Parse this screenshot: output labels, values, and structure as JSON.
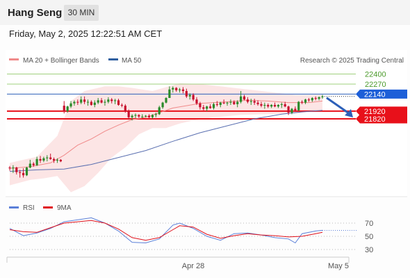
{
  "header": {
    "symbol": "Hang Seng",
    "timeframe": "30 MIN"
  },
  "datetime": "Friday, May 2, 2025 12:22:51 AM CET",
  "legend": [
    {
      "label": "MA 20 + Bollinger Bands",
      "color": "#f08a8a"
    },
    {
      "label": "MA 50",
      "color": "#2f5fa0"
    }
  ],
  "credit": "Research © 2025 Trading Central",
  "colors": {
    "up": "#2a8a2a",
    "down": "#c8102e",
    "ma50": "#5a6fb0",
    "ma20": "#f08a8a",
    "band": "#fbe0e0",
    "support": "#e8101a",
    "pivot": "#2d5fb8",
    "resistance": "#9fd07e",
    "rsi": "#5a7fd8",
    "rsi_ma": "#e0101a"
  },
  "chart_data": [
    {
      "type": "candlestick",
      "title": "Hang Seng 30 MIN",
      "x_labels": [
        "Apr 28",
        "May 5"
      ],
      "y_range": [
        21000,
        22450
      ],
      "candles": [
        [
          21190,
          21210,
          21150,
          21180
        ],
        [
          21180,
          21220,
          21120,
          21190
        ],
        [
          21190,
          21200,
          21100,
          21130
        ],
        [
          21130,
          21160,
          21060,
          21120
        ],
        [
          21120,
          21180,
          21060,
          21090
        ],
        [
          21090,
          21200,
          21080,
          21190
        ],
        [
          21190,
          21290,
          21180,
          21240
        ],
        [
          21240,
          21260,
          21200,
          21220
        ],
        [
          21220,
          21330,
          21210,
          21300
        ],
        [
          21300,
          21340,
          21250,
          21280
        ],
        [
          21280,
          21330,
          21260,
          21310
        ],
        [
          21310,
          21350,
          21270,
          21320
        ],
        [
          21320,
          21370,
          21290,
          21300
        ],
        [
          21300,
          21320,
          21250,
          21280
        ],
        [
          21280,
          21310,
          21250,
          21290
        ],
        [
          21290,
          21300,
          21260,
          21270
        ],
        [
          21990,
          22050,
          21890,
          21920
        ],
        [
          21920,
          21990,
          21900,
          21980
        ],
        [
          21980,
          22050,
          21960,
          22020
        ],
        [
          22020,
          22060,
          21990,
          22040
        ],
        [
          22040,
          22070,
          22000,
          22030
        ],
        [
          22030,
          22110,
          22010,
          22070
        ],
        [
          22070,
          22110,
          22010,
          22040
        ],
        [
          22040,
          22070,
          21990,
          22040
        ],
        [
          22040,
          22060,
          21990,
          22000
        ],
        [
          22000,
          22060,
          21970,
          22030
        ],
        [
          22030,
          22090,
          22010,
          22060
        ],
        [
          22060,
          22090,
          22020,
          22030
        ],
        [
          22030,
          22070,
          21990,
          22040
        ],
        [
          22040,
          22100,
          22020,
          22070
        ],
        [
          22070,
          22090,
          22020,
          22050
        ],
        [
          22050,
          22080,
          22010,
          22060
        ],
        [
          22060,
          22080,
          21990,
          22000
        ],
        [
          22000,
          22020,
          21970,
          21990
        ],
        [
          21990,
          22010,
          21900,
          21920
        ],
        [
          21920,
          21940,
          21810,
          21840
        ],
        [
          21840,
          21880,
          21800,
          21860
        ],
        [
          21860,
          21890,
          21830,
          21870
        ],
        [
          21870,
          21880,
          21830,
          21850
        ],
        [
          21850,
          21880,
          21830,
          21850
        ],
        [
          21850,
          21870,
          21840,
          21860
        ],
        [
          21860,
          21880,
          21830,
          21840
        ],
        [
          21840,
          21880,
          21820,
          21870
        ],
        [
          21870,
          21900,
          21840,
          21880
        ],
        [
          21880,
          21990,
          21870,
          21970
        ],
        [
          21970,
          22040,
          21950,
          22030
        ],
        [
          22030,
          22100,
          22020,
          22090
        ],
        [
          22090,
          22240,
          22090,
          22200
        ],
        [
          22200,
          22240,
          22160,
          22220
        ],
        [
          22220,
          22230,
          22170,
          22190
        ],
        [
          22190,
          22220,
          22160,
          22200
        ],
        [
          22200,
          22230,
          22150,
          22180
        ],
        [
          22180,
          22210,
          22090,
          22110
        ],
        [
          22110,
          22150,
          22070,
          22130
        ],
        [
          22130,
          22150,
          22050,
          22070
        ],
        [
          22070,
          22100,
          22000,
          22020
        ],
        [
          22020,
          22040,
          21940,
          21970
        ],
        [
          21970,
          22000,
          21930,
          21950
        ],
        [
          21950,
          21990,
          21920,
          21980
        ],
        [
          21980,
          22010,
          21950,
          21960
        ],
        [
          21960,
          22030,
          21940,
          22010
        ],
        [
          22010,
          22050,
          21980,
          22000
        ],
        [
          22000,
          22040,
          21970,
          22030
        ],
        [
          22030,
          22070,
          22010,
          22020
        ],
        [
          22020,
          22040,
          21990,
          22030
        ],
        [
          22030,
          22070,
          22000,
          22040
        ],
        [
          22040,
          22060,
          22000,
          22010
        ],
        [
          22010,
          22060,
          21970,
          22040
        ],
        [
          22040,
          22180,
          22020,
          22110
        ],
        [
          22110,
          22130,
          22060,
          22070
        ],
        [
          22070,
          22100,
          22020,
          22040
        ],
        [
          22040,
          22080,
          22000,
          22050
        ],
        [
          22050,
          22080,
          22000,
          22030
        ],
        [
          22030,
          22060,
          21990,
          22010
        ],
        [
          22010,
          22040,
          21970,
          21990
        ],
        [
          21990,
          22030,
          21950,
          22000
        ],
        [
          22000,
          22020,
          21960,
          21980
        ],
        [
          21980,
          22010,
          21960,
          22000
        ],
        [
          22000,
          22030,
          21970,
          21980
        ],
        [
          21980,
          22010,
          21960,
          22000
        ],
        [
          22000,
          22030,
          21960,
          22010
        ],
        [
          22010,
          22040,
          21970,
          21980
        ],
        [
          21980,
          21990,
          21870,
          21900
        ],
        [
          21900,
          21960,
          21880,
          21950
        ],
        [
          21950,
          21980,
          21910,
          21930
        ],
        [
          21930,
          22050,
          21920,
          22040
        ],
        [
          22040,
          22060,
          22010,
          22030
        ],
        [
          22030,
          22080,
          22010,
          22070
        ],
        [
          22070,
          22090,
          22040,
          22060
        ],
        [
          22060,
          22100,
          22040,
          22090
        ],
        [
          22090,
          22110,
          22060,
          22080
        ],
        [
          22080,
          22110,
          22060,
          22100
        ],
        [
          22100,
          22130,
          22080,
          22110
        ]
      ],
      "ma20": [
        [
          0,
          21180
        ],
        [
          6,
          21200
        ],
        [
          12,
          21250
        ],
        [
          16,
          21350
        ],
        [
          20,
          21480
        ],
        [
          24,
          21560
        ],
        [
          28,
          21660
        ],
        [
          32,
          21740
        ],
        [
          36,
          21810
        ],
        [
          40,
          21840
        ],
        [
          44,
          21900
        ],
        [
          48,
          21960
        ],
        [
          52,
          21990
        ],
        [
          56,
          22020
        ],
        [
          60,
          22030
        ],
        [
          64,
          22040
        ],
        [
          70,
          22060
        ],
        [
          76,
          22050
        ],
        [
          82,
          22030
        ],
        [
          88,
          22030
        ],
        [
          92,
          22050
        ]
      ],
      "ma50": [
        [
          0,
          21140
        ],
        [
          8,
          21160
        ],
        [
          16,
          21170
        ],
        [
          24,
          21230
        ],
        [
          32,
          21320
        ],
        [
          40,
          21410
        ],
        [
          48,
          21530
        ],
        [
          56,
          21640
        ],
        [
          64,
          21730
        ],
        [
          72,
          21820
        ],
        [
          80,
          21880
        ],
        [
          86,
          21910
        ],
        [
          92,
          21930
        ]
      ],
      "bb_upper": [
        [
          0,
          21250
        ],
        [
          8,
          21330
        ],
        [
          14,
          21600
        ],
        [
          18,
          22050
        ],
        [
          22,
          22180
        ],
        [
          28,
          22240
        ],
        [
          32,
          22240
        ],
        [
          36,
          22220
        ],
        [
          42,
          22180
        ],
        [
          46,
          22230
        ],
        [
          50,
          22280
        ],
        [
          56,
          22270
        ],
        [
          62,
          22240
        ],
        [
          68,
          22210
        ],
        [
          76,
          22170
        ],
        [
          84,
          22130
        ],
        [
          92,
          22130
        ]
      ],
      "bb_lower": [
        [
          0,
          20960
        ],
        [
          6,
          21030
        ],
        [
          10,
          21050
        ],
        [
          14,
          21080
        ],
        [
          18,
          20870
        ],
        [
          22,
          20950
        ],
        [
          26,
          21120
        ],
        [
          30,
          21320
        ],
        [
          34,
          21450
        ],
        [
          38,
          21620
        ],
        [
          42,
          21700
        ],
        [
          46,
          21700
        ],
        [
          50,
          21760
        ],
        [
          54,
          21800
        ],
        [
          60,
          21840
        ],
        [
          68,
          21870
        ],
        [
          76,
          21880
        ],
        [
          84,
          21890
        ],
        [
          92,
          21920
        ]
      ],
      "levels": [
        {
          "value": 22400,
          "label": "22400",
          "kind": "resistance"
        },
        {
          "value": 22270,
          "label": "22270",
          "kind": "resistance"
        },
        {
          "value": 22140,
          "label": "22140",
          "kind": "pivot"
        },
        {
          "value": 21920,
          "label": "21920",
          "kind": "support"
        },
        {
          "value": 21820,
          "label": "21820",
          "kind": "support"
        }
      ],
      "last_price": 22110,
      "forecast_arrow": {
        "from": 22110,
        "to": 21820
      }
    },
    {
      "type": "line",
      "title": "RSI",
      "legend": [
        {
          "label": "RSI",
          "color": "#5a7fd8"
        },
        {
          "label": "9MA",
          "color": "#e0101a"
        }
      ],
      "y_ticks": [
        70,
        50,
        30
      ],
      "y_range": [
        20,
        80
      ],
      "rsi": [
        [
          0,
          62
        ],
        [
          4,
          51
        ],
        [
          8,
          55
        ],
        [
          12,
          62
        ],
        [
          16,
          72
        ],
        [
          20,
          75
        ],
        [
          24,
          78
        ],
        [
          28,
          70
        ],
        [
          32,
          58
        ],
        [
          36,
          41
        ],
        [
          40,
          40
        ],
        [
          44,
          46
        ],
        [
          48,
          67
        ],
        [
          50,
          70
        ],
        [
          54,
          62
        ],
        [
          58,
          50
        ],
        [
          62,
          44
        ],
        [
          66,
          54
        ],
        [
          70,
          55
        ],
        [
          74,
          52
        ],
        [
          78,
          48
        ],
        [
          82,
          46
        ],
        [
          84,
          40
        ],
        [
          86,
          54
        ],
        [
          90,
          58
        ],
        [
          92,
          59
        ]
      ],
      "ma9": [
        [
          0,
          60
        ],
        [
          4,
          57
        ],
        [
          8,
          56
        ],
        [
          12,
          63
        ],
        [
          16,
          70
        ],
        [
          20,
          72
        ],
        [
          24,
          74
        ],
        [
          28,
          70
        ],
        [
          32,
          61
        ],
        [
          36,
          48
        ],
        [
          40,
          44
        ],
        [
          44,
          48
        ],
        [
          48,
          60
        ],
        [
          50,
          66
        ],
        [
          54,
          64
        ],
        [
          58,
          53
        ],
        [
          62,
          47
        ],
        [
          66,
          51
        ],
        [
          70,
          54
        ],
        [
          74,
          52
        ],
        [
          78,
          51
        ],
        [
          82,
          49
        ],
        [
          86,
          50
        ],
        [
          90,
          54
        ],
        [
          92,
          56
        ]
      ]
    }
  ]
}
